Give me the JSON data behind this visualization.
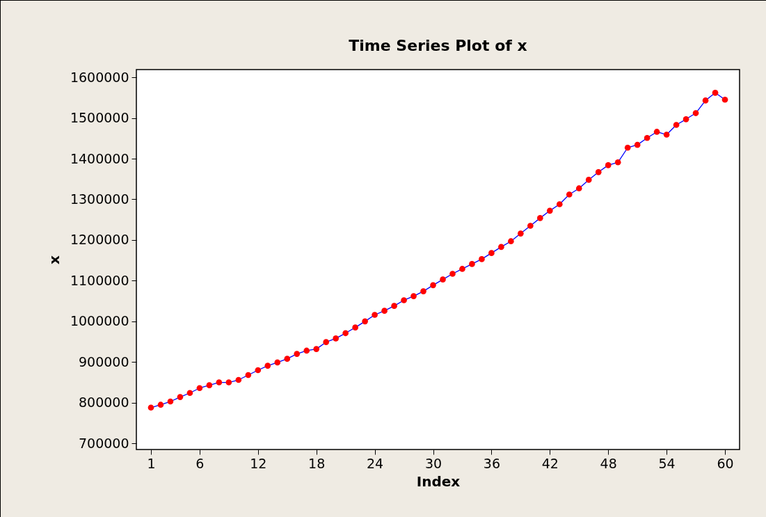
{
  "chart_data": {
    "type": "line",
    "title": "Time Series Plot of x",
    "xlabel": "Index",
    "ylabel": "x",
    "x": [
      1,
      2,
      3,
      4,
      5,
      6,
      7,
      8,
      9,
      10,
      11,
      12,
      13,
      14,
      15,
      16,
      17,
      18,
      19,
      20,
      21,
      22,
      23,
      24,
      25,
      26,
      27,
      28,
      29,
      30,
      31,
      32,
      33,
      34,
      35,
      36,
      37,
      38,
      39,
      40,
      41,
      42,
      43,
      44,
      45,
      46,
      47,
      48,
      49,
      50,
      51,
      52,
      53,
      54,
      55,
      56,
      57,
      58,
      59,
      60
    ],
    "series": [
      {
        "color": "#ff0000",
        "values": [
          788000,
          795000,
          803000,
          814000,
          824000,
          836000,
          843000,
          850000,
          850000,
          856000,
          868000,
          880000,
          891000,
          899000,
          908000,
          920000,
          928000,
          932000,
          949000,
          958000,
          971000,
          985000,
          1000000,
          1016000,
          1026000,
          1038000,
          1052000,
          1062000,
          1074000,
          1089000,
          1103000,
          1117000,
          1129000,
          1141000,
          1153000,
          1168000,
          1183000,
          1197000,
          1216000,
          1235000,
          1254000,
          1272000,
          1288000,
          1312000,
          1327000,
          1348000,
          1367000,
          1384000,
          1391000,
          1427000,
          1434000,
          1451000,
          1466000,
          1459000,
          1483000,
          1497000,
          1512000,
          1543000,
          1562000,
          1545000
        ]
      }
    ],
    "xlim": [
      -0.5,
      61.5
    ],
    "xticks": [
      1,
      6,
      12,
      18,
      24,
      30,
      36,
      42,
      48,
      54,
      60
    ],
    "ylim": [
      685000,
      1619000
    ],
    "yticks": [
      700000,
      800000,
      900000,
      1000000,
      1100000,
      1200000,
      1300000,
      1400000,
      1500000,
      1600000
    ],
    "marker": "circle"
  }
}
